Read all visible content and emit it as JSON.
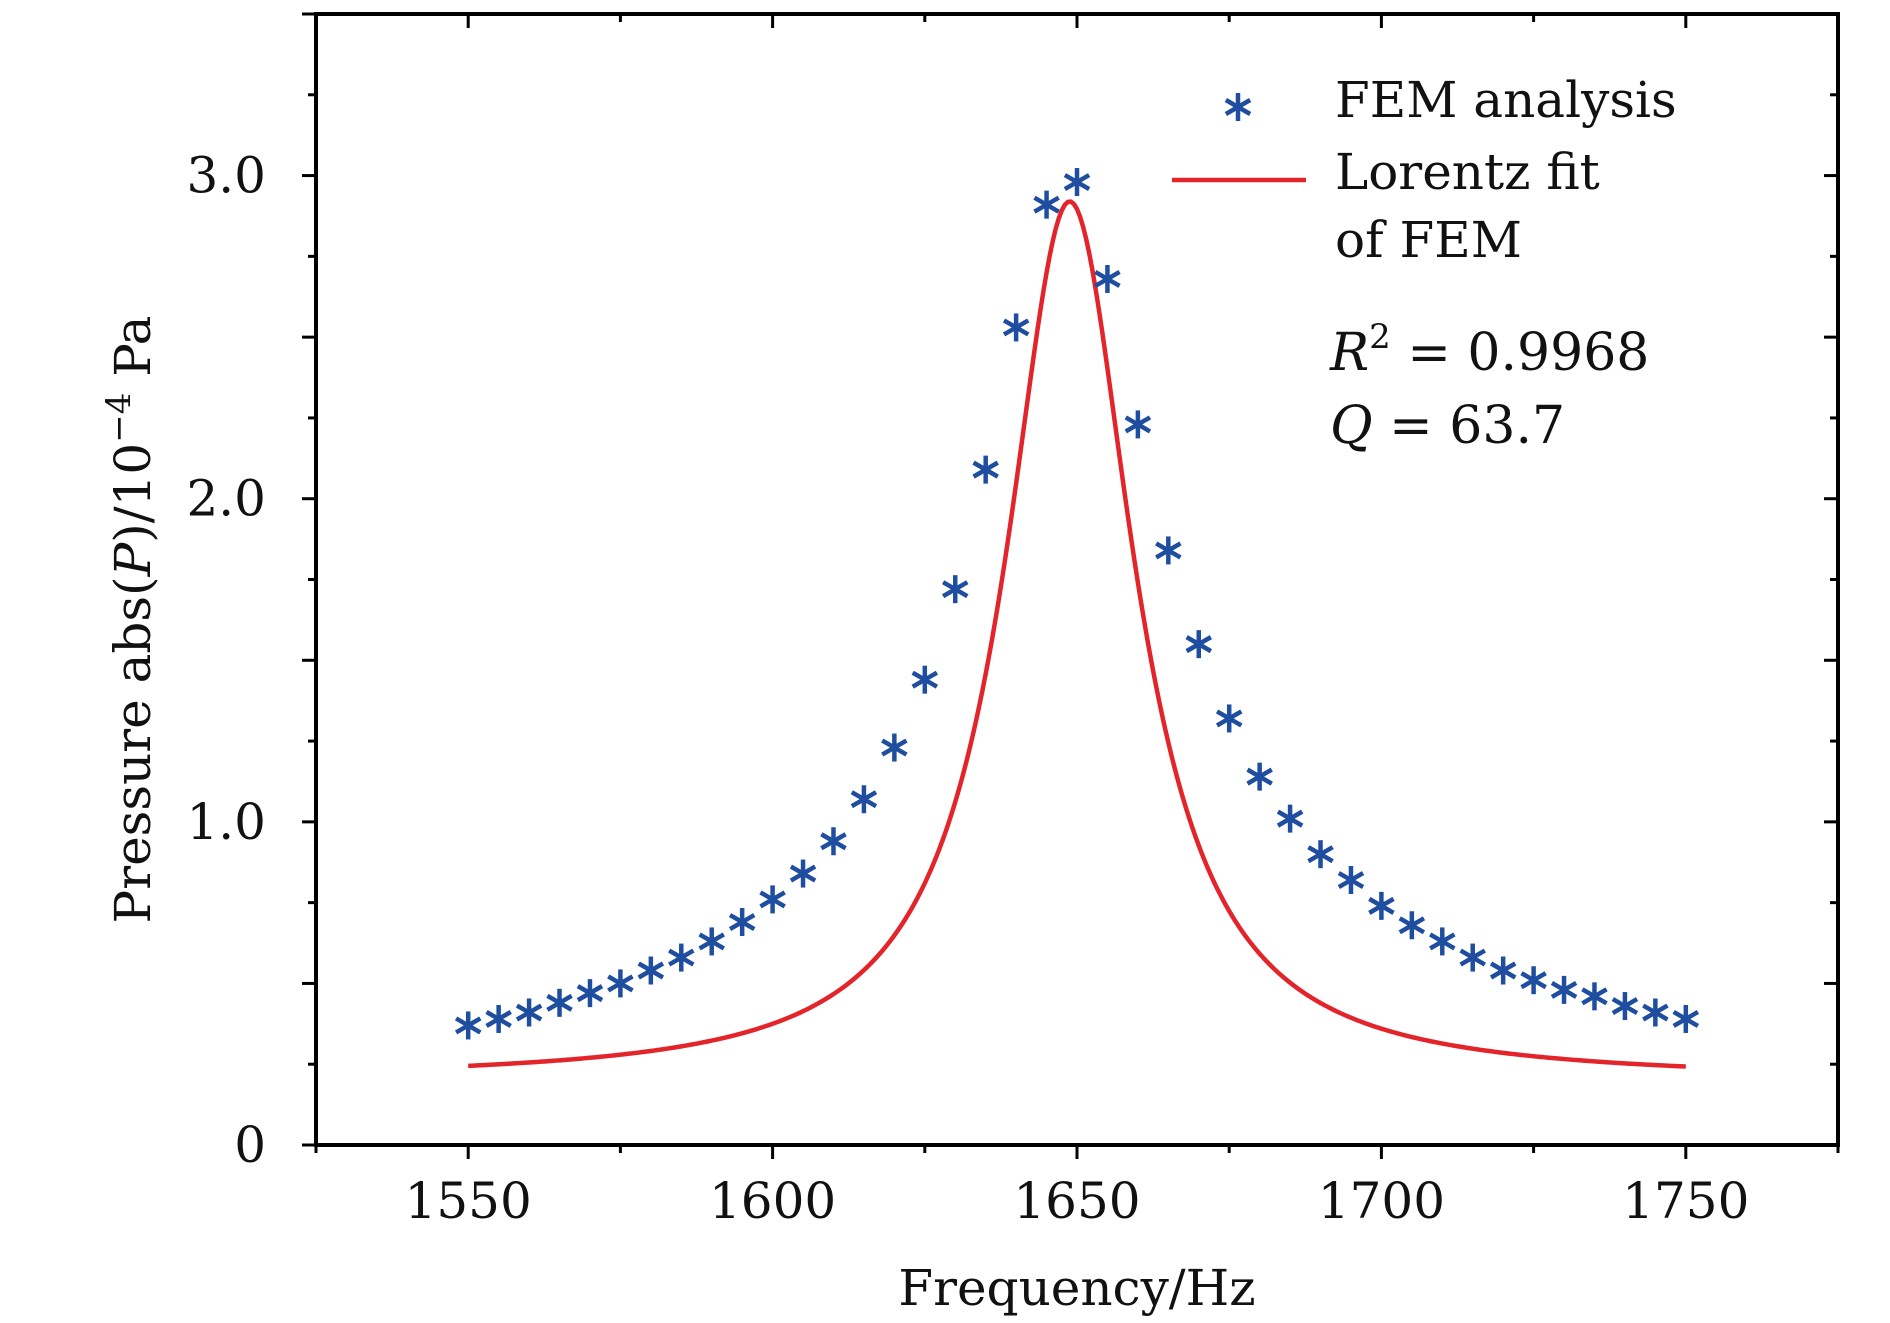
{
  "chart_data": {
    "type": "scatter",
    "xlabel": "Frequency/Hz",
    "ylabel": "Pressure abs(P)/10⁻⁴ Pa",
    "xlim": [
      1525,
      1775
    ],
    "ylim": [
      0,
      3.5
    ],
    "x_ticks": [
      1550,
      1600,
      1650,
      1700,
      1750
    ],
    "x_tick_labels": [
      "1550",
      "1600",
      "1650",
      "1700",
      "1750"
    ],
    "y_ticks": [
      0,
      1.0,
      2.0,
      3.0
    ],
    "y_tick_labels": [
      "0",
      "1.0",
      "2.0",
      "3.0"
    ],
    "grid": false,
    "legend_position": "top-right",
    "series": [
      {
        "name": "FEM analysis",
        "kind": "scatter",
        "marker": "asterisk",
        "color": "#1f4ea0",
        "x": [
          1550,
          1555,
          1560,
          1565,
          1570,
          1575,
          1580,
          1585,
          1590,
          1595,
          1600,
          1605,
          1610,
          1615,
          1620,
          1625,
          1630,
          1635,
          1640,
          1645,
          1650,
          1655,
          1660,
          1665,
          1670,
          1675,
          1680,
          1685,
          1690,
          1695,
          1700,
          1705,
          1710,
          1715,
          1720,
          1725,
          1730,
          1735,
          1740,
          1745,
          1750
        ],
        "y": [
          0.37,
          0.39,
          0.41,
          0.44,
          0.47,
          0.5,
          0.54,
          0.58,
          0.63,
          0.69,
          0.76,
          0.84,
          0.94,
          1.07,
          1.23,
          1.44,
          1.72,
          2.09,
          2.53,
          2.91,
          2.98,
          2.68,
          2.23,
          1.84,
          1.55,
          1.32,
          1.14,
          1.01,
          0.9,
          0.82,
          0.74,
          0.68,
          0.63,
          0.58,
          0.54,
          0.51,
          0.48,
          0.46,
          0.43,
          0.41,
          0.39
        ]
      },
      {
        "name": "Lorentz fit of FEM",
        "name_lines": [
          "Lorentz fit",
          "of FEM"
        ],
        "kind": "line",
        "color": "#e3242b",
        "model": "lorentzian",
        "params": {
          "y0": 0.2,
          "amplitude": 2.72,
          "center": 1648.8,
          "hwhm": 12.8
        },
        "x_range": [
          1550,
          1750
        ]
      }
    ],
    "annotations": {
      "r2_symbol": "R",
      "r2_sup": "2",
      "r2_value": " = 0.9968",
      "q_symbol": "Q",
      "q_value": " = 63.7"
    }
  }
}
